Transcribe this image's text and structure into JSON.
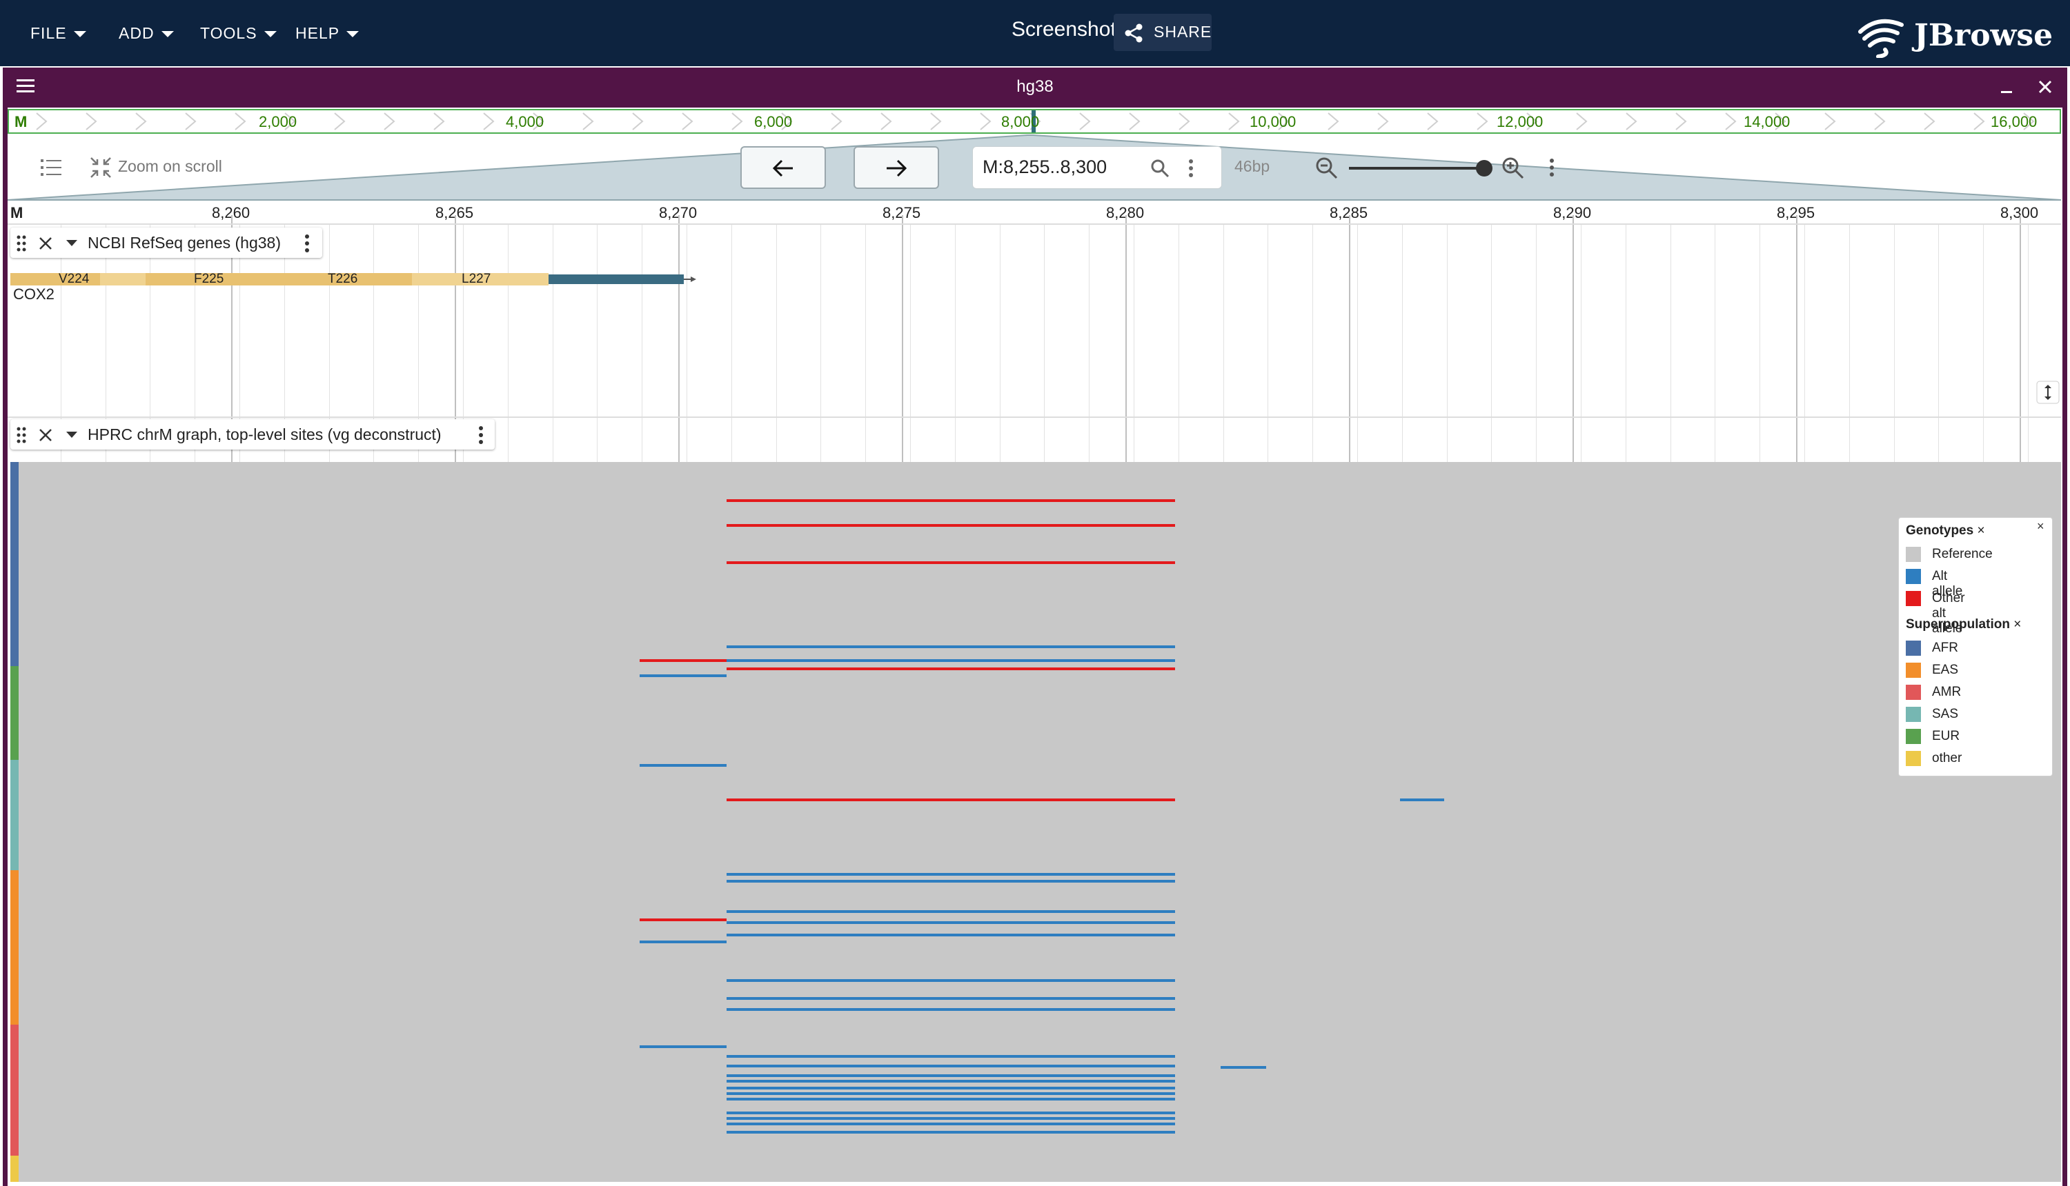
{
  "menu": {
    "file": "FILE",
    "add": "ADD",
    "tools": "TOOLS",
    "help": "HELP"
  },
  "header": {
    "title": "Screenshot",
    "share": "SHARE",
    "logo": "JBrowse"
  },
  "view": {
    "assembly": "hg38",
    "overview": {
      "chrom": "M",
      "labels": [
        "2,000",
        "4,000",
        "6,000",
        "8,000",
        "10,000",
        "12,000",
        "14,000",
        "16,000"
      ]
    },
    "controls": {
      "zoom_on_scroll": "Zoom on scroll",
      "location": "M:8,255..8,300",
      "bp": "46bp"
    },
    "ruler": {
      "chrom": "M",
      "ticks": [
        "8,260",
        "8,265",
        "8,270",
        "8,275",
        "8,280",
        "8,285",
        "8,290",
        "8,295",
        "8,300"
      ]
    }
  },
  "tracks": {
    "refseq": {
      "label": "NCBI RefSeq genes (hg38)",
      "gene_name": "COX2",
      "codons": [
        "V224",
        "F225",
        "T226",
        "L227"
      ]
    },
    "hprc": {
      "label": "HPRC chrM graph, top-level sites (vg deconstruct)"
    }
  },
  "legend": {
    "genotypes_title": "Genotypes",
    "genotypes": [
      {
        "label": "Reference",
        "color": "#c8c8c8"
      },
      {
        "label": "Alt allele",
        "color": "#2e7ec0"
      },
      {
        "label": "Other alt allele",
        "color": "#e31a1c"
      }
    ],
    "superpop_title": "Superpopulation",
    "superpops": [
      {
        "label": "AFR",
        "color": "#4a6fa5"
      },
      {
        "label": "EAS",
        "color": "#f28e2b"
      },
      {
        "label": "AMR",
        "color": "#e15759"
      },
      {
        "label": "SAS",
        "color": "#76b7b2"
      },
      {
        "label": "EUR",
        "color": "#59a14f"
      },
      {
        "label": "other",
        "color": "#edc948"
      }
    ],
    "close": "×"
  }
}
